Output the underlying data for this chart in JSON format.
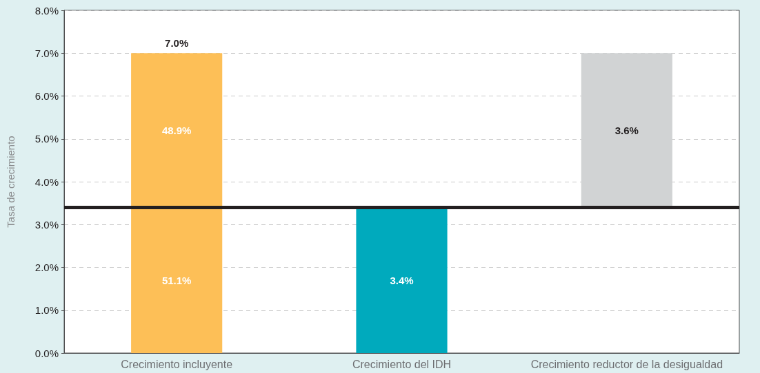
{
  "chart_data": {
    "type": "bar",
    "ylabel": "Tasa de crecimiento",
    "categories": [
      "Crecimiento incluyente",
      "Crecimiento del IDH",
      "Crecimiento reductor de la desigualdad"
    ],
    "series": [
      {
        "values": [
          7.0,
          3.4,
          null
        ],
        "colors": [
          "#fdbf57",
          "#00aabd",
          null
        ],
        "value_labels": [
          "7.0%",
          "3.4%",
          null
        ]
      },
      {
        "values": [
          null,
          null,
          3.6
        ],
        "base": [
          null,
          null,
          3.4
        ],
        "colors": [
          null,
          null,
          "#d1d3d4"
        ],
        "value_labels": [
          null,
          null,
          "3.6%"
        ]
      }
    ],
    "annotations": [
      "48.9%",
      "51.1%"
    ],
    "ylim": [
      0,
      8
    ],
    "yticks": [
      {
        "value": 0,
        "label": "0.0%"
      },
      {
        "value": 1,
        "label": "1.0%"
      },
      {
        "value": 2,
        "label": "2.0%"
      },
      {
        "value": 3,
        "label": "3.0%"
      },
      {
        "value": 4,
        "label": "4.0%"
      },
      {
        "value": 5,
        "label": "5.0%"
      },
      {
        "value": 6,
        "label": "6.0%"
      },
      {
        "value": 7,
        "label": "7.0%"
      },
      {
        "value": 8,
        "label": "8.0%"
      }
    ],
    "ref_lines": [
      {
        "axis": "y",
        "value": 3.4,
        "color": "#231f20"
      }
    ],
    "grid": "y"
  }
}
